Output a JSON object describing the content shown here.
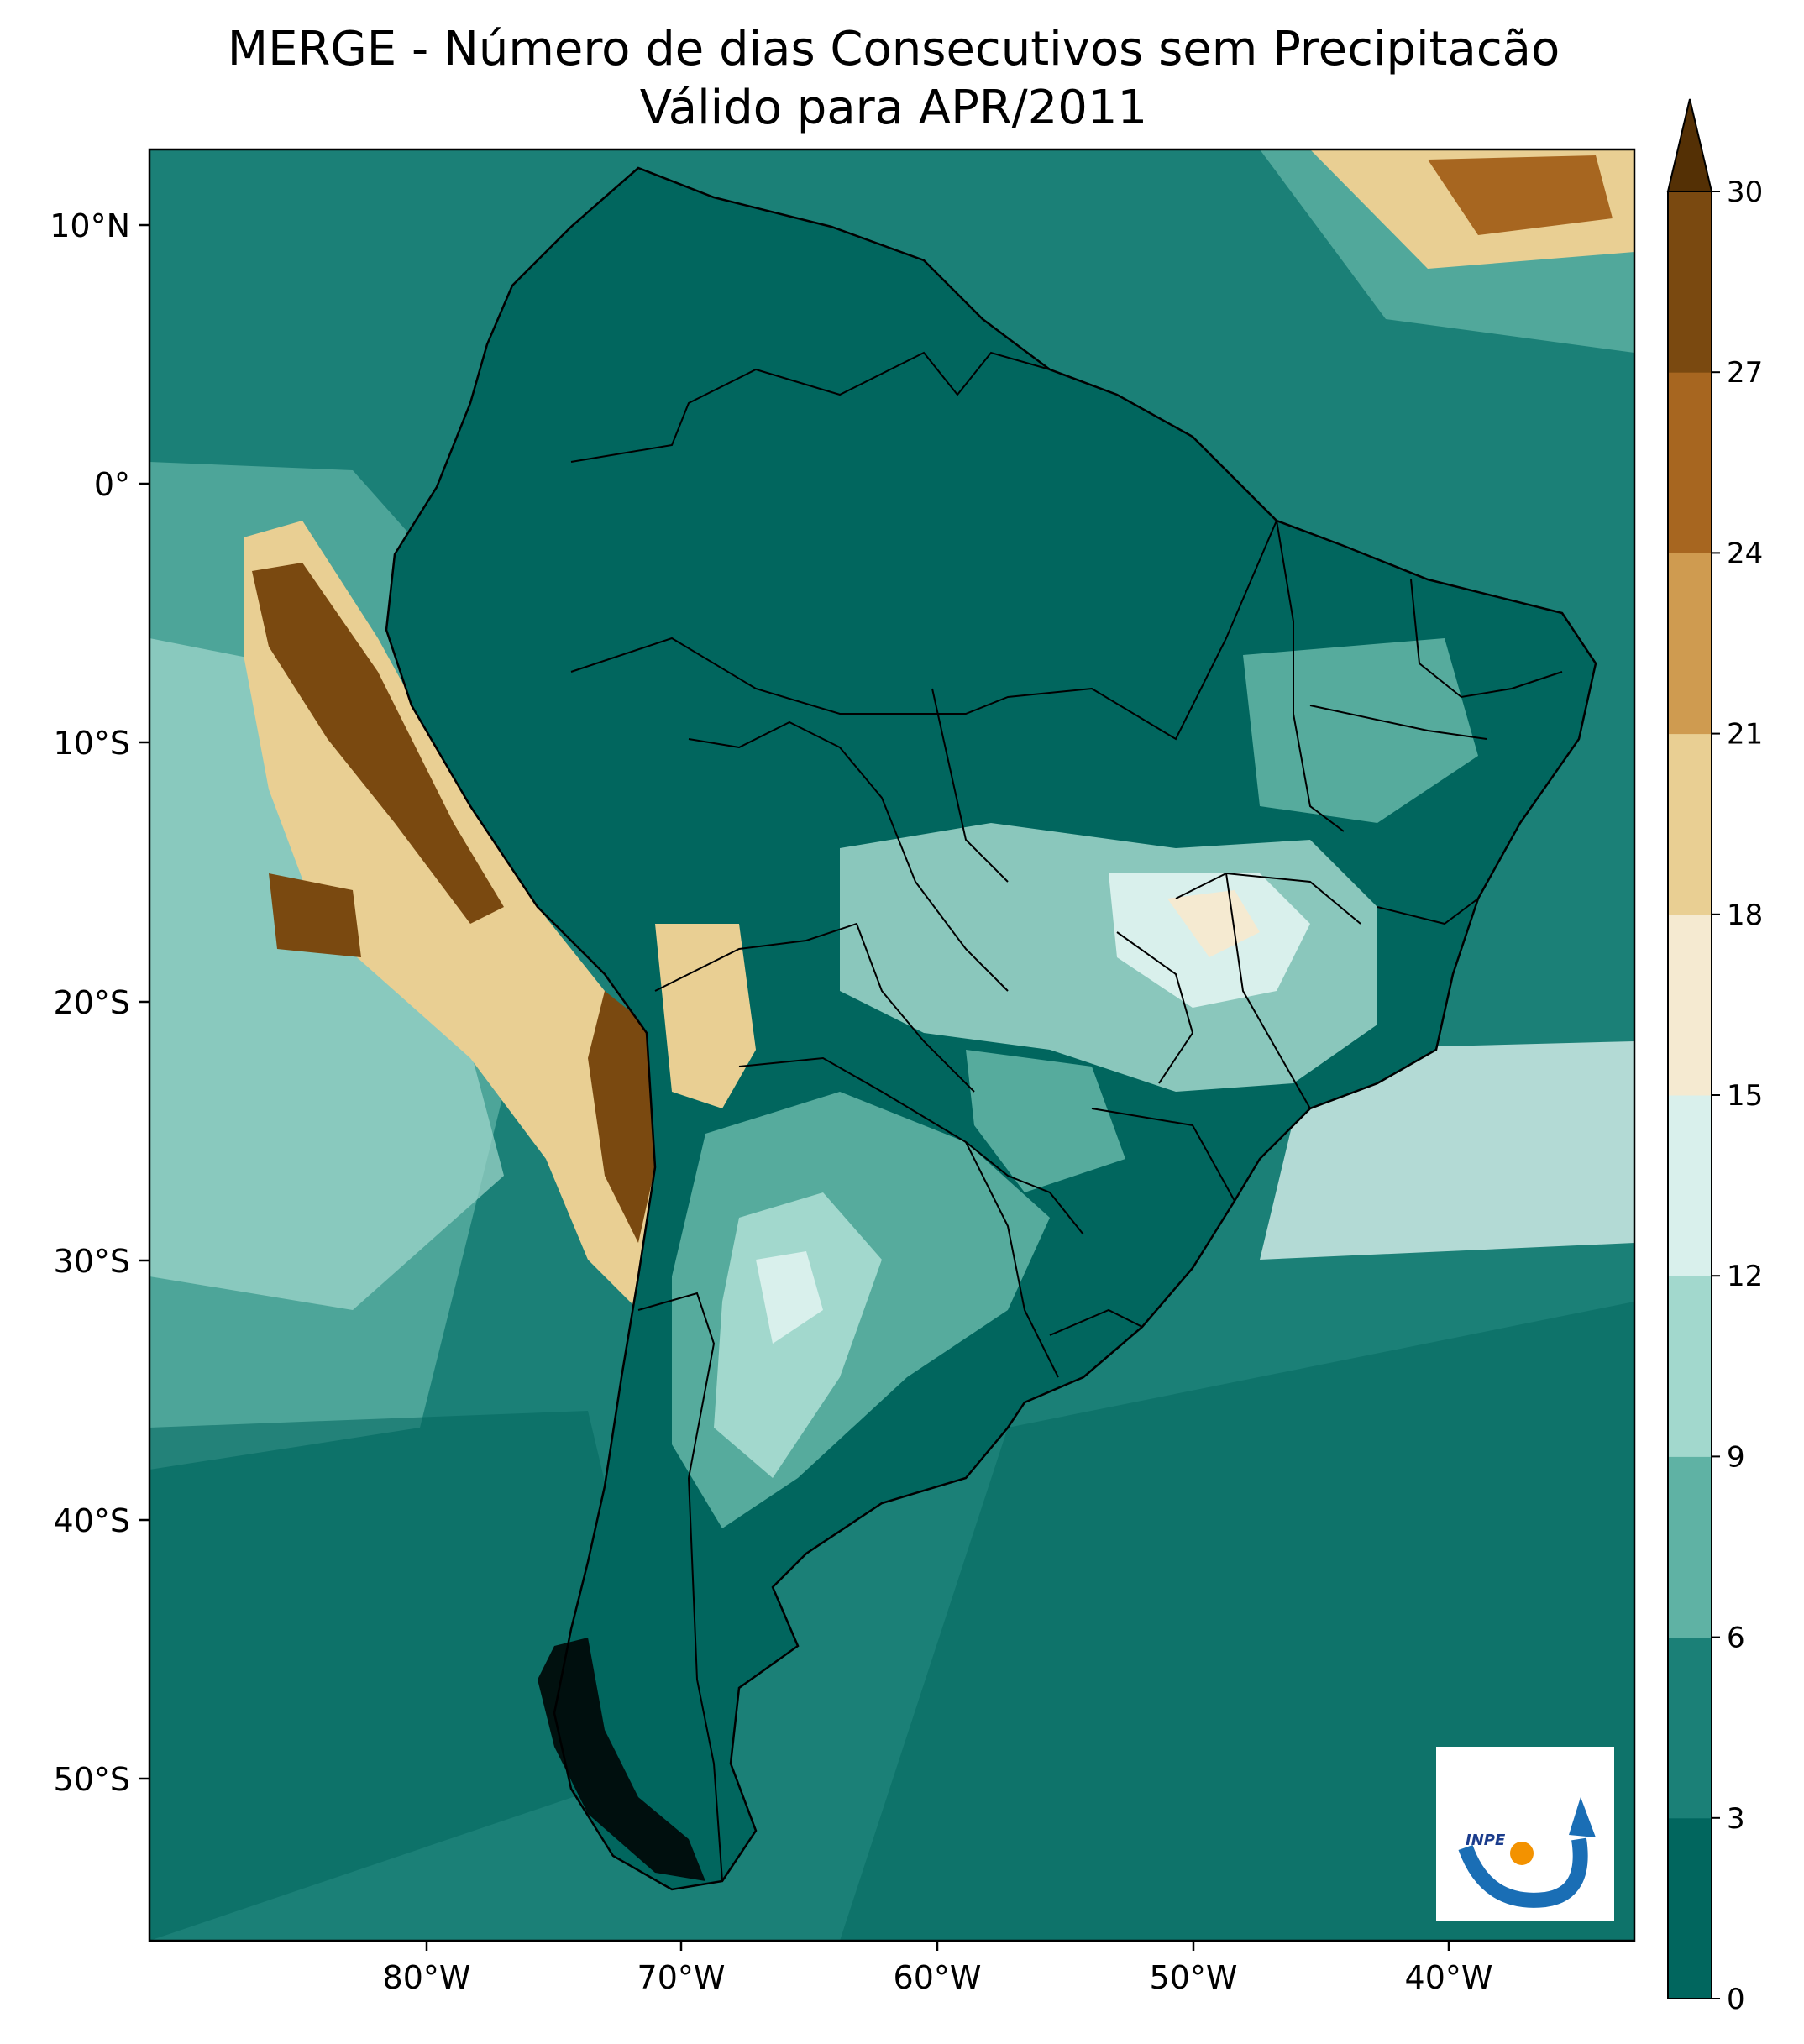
{
  "title_line1": "MERGE - Número de dias Consecutivos sem Precipitacão",
  "title_line2": "Válido para APR/2011",
  "lat_labels": [
    "10°N",
    "0°",
    "10°S",
    "20°S",
    "30°S",
    "40°S",
    "50°S"
  ],
  "lon_labels": [
    "80°W",
    "70°W",
    "60°W",
    "50°W",
    "40°W"
  ],
  "colorbar": {
    "ticks": [
      "0",
      "3",
      "6",
      "9",
      "12",
      "15",
      "18",
      "21",
      "24",
      "27",
      "30"
    ],
    "colors": [
      "#01665e",
      "#1b8077",
      "#5fb2a4",
      "#a2d8cd",
      "#d9f0ec",
      "#f5ead1",
      "#e9cf93",
      "#cf9b50",
      "#a76620",
      "#7a4910"
    ],
    "extend_color": "#543005"
  },
  "logo": {
    "text": "INPE"
  }
}
